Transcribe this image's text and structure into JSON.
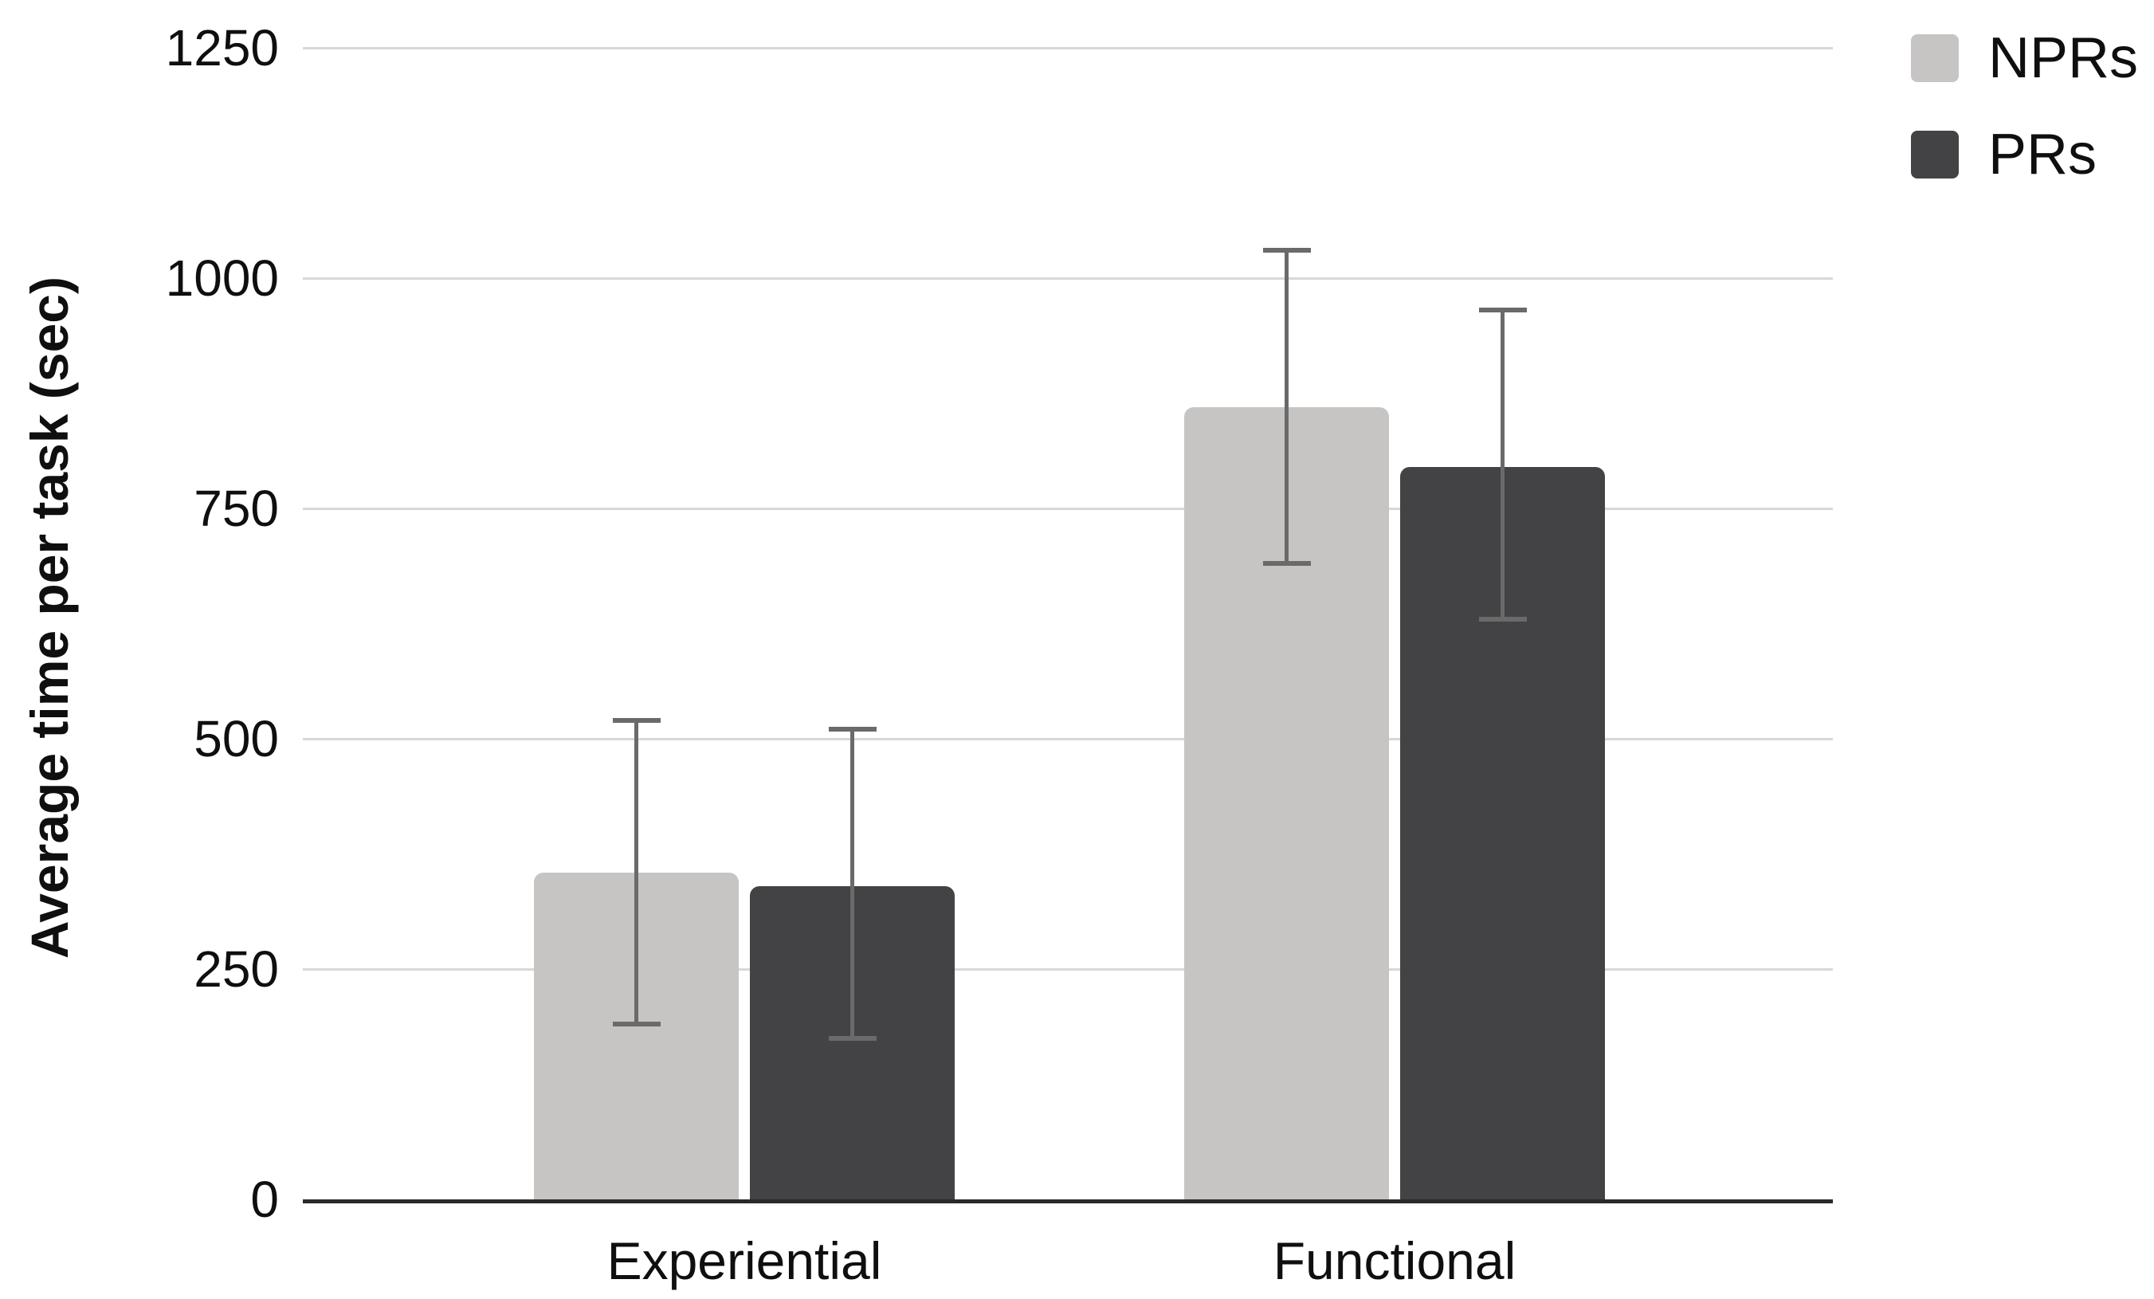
{
  "figure": {
    "background": "#ffffff",
    "text_color": "#0f0f0f"
  },
  "legend": {
    "position": "top-right",
    "items": [
      {
        "label": "NPRs",
        "color": "#c6c5c3"
      },
      {
        "label": "PRs",
        "color": "#434244"
      }
    ]
  },
  "chart_data": {
    "type": "bar",
    "title": "",
    "xlabel": "",
    "ylabel": "Average time per task (sec)",
    "categories": [
      "Experiential",
      "Functional"
    ],
    "series": [
      {
        "name": "NPRs",
        "color": "#c6c5c3",
        "values": [
          355,
          860
        ],
        "error_low": [
          190,
          690
        ],
        "error_high": [
          520,
          1030
        ]
      },
      {
        "name": "PRs",
        "color": "#434244",
        "values": [
          340,
          795
        ],
        "error_low": [
          175,
          630
        ],
        "error_high": [
          510,
          965
        ]
      }
    ],
    "ylim": [
      0,
      1250
    ],
    "yticks": [
      0,
      250,
      500,
      750,
      1000,
      1250
    ],
    "grid": true,
    "legend_position": "top-right",
    "styles": {
      "gridline_color": "#d8d8d8",
      "baseline_color": "#2a2a2a",
      "error_bar_color": "#6a6a6a"
    }
  }
}
